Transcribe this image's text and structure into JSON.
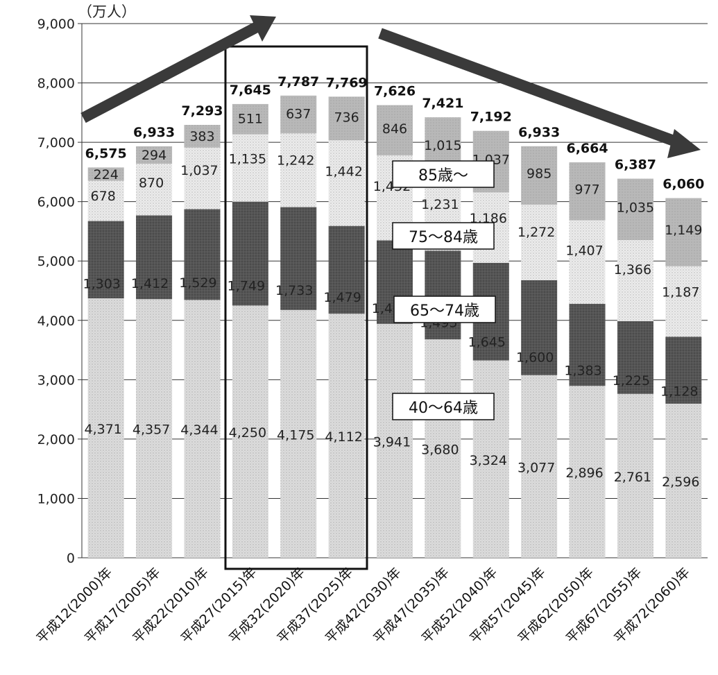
{
  "chart_data": {
    "type": "bar",
    "stacked": true,
    "y_unit_label": "（万人）",
    "ylim": [
      0,
      9000
    ],
    "yticks": [
      0,
      1000,
      2000,
      3000,
      4000,
      5000,
      6000,
      7000,
      8000,
      9000
    ],
    "ytick_labels": [
      "0",
      "1,000",
      "2,000",
      "3,000",
      "4,000",
      "5,000",
      "6,000",
      "7,000",
      "8,000",
      "9,000"
    ],
    "grid": "horizontal",
    "categories": [
      "平成12(2000)年",
      "平成17(2005)年",
      "平成22(2010)年",
      "平成27(2015)年",
      "平成32(2020)年",
      "平成37(2025)年",
      "平成42(2030)年",
      "平成47(2035)年",
      "平成52(2040)年",
      "平成57(2045)年",
      "平成62(2050)年",
      "平成67(2055)年",
      "平成72(2060)年"
    ],
    "series": [
      {
        "name": "40～64歳",
        "color": "#dcdcdc",
        "values": [
          4371,
          4357,
          4344,
          4250,
          4175,
          4112,
          3941,
          3680,
          3324,
          3077,
          2896,
          2761,
          2596
        ],
        "labels": [
          "4,371",
          "4,357",
          "4,344",
          "4,250",
          "4,175",
          "4,112",
          "3,941",
          "3,680",
          "3,324",
          "3,077",
          "2,896",
          "2,761",
          "2,596"
        ]
      },
      {
        "name": "65～74歳",
        "color": "#555555",
        "values": [
          1303,
          1412,
          1529,
          1749,
          1733,
          1479,
          1407,
          1495,
          1645,
          1600,
          1383,
          1225,
          1128
        ],
        "labels": [
          "1,303",
          "1,412",
          "1,529",
          "1,749",
          "1,733",
          "1,479",
          "1,407",
          "1,495",
          "1,645",
          "1,600",
          "1,383",
          "1,225",
          "1,128"
        ]
      },
      {
        "name": "75～84歳",
        "color": "#ececec",
        "values": [
          678,
          870,
          1037,
          1135,
          1242,
          1442,
          1432,
          1231,
          1186,
          1272,
          1407,
          1366,
          1187
        ],
        "labels": [
          "678",
          "870",
          "1,037",
          "1,135",
          "1,242",
          "1,442",
          "1,432",
          "1,231",
          "1,186",
          "1,272",
          "1,407",
          "1,366",
          "1,187"
        ]
      },
      {
        "name": "85歳～",
        "color": "#b8b8b8",
        "values": [
          224,
          294,
          383,
          511,
          637,
          736,
          846,
          1015,
          1037,
          985,
          977,
          1035,
          1149
        ],
        "labels": [
          "224",
          "294",
          "383",
          "511",
          "637",
          "736",
          "846",
          "1,015",
          "1,037",
          "985",
          "977",
          "1,035",
          "1,149"
        ]
      }
    ],
    "totals": [
      6575,
      6933,
      7293,
      7645,
      7787,
      7769,
      7626,
      7421,
      7192,
      6933,
      6664,
      6387,
      6060
    ],
    "total_labels": [
      "6,575",
      "6,933",
      "7,293",
      "7,645",
      "7,787",
      "7,769",
      "7,626",
      "7,421",
      "7,192",
      "6,933",
      "6,664",
      "6,387",
      "6,060"
    ],
    "highlight_box_categories": [
      "平成27(2015)年",
      "平成32(2020)年",
      "平成37(2025)年"
    ],
    "trend_arrows": [
      "up",
      "down"
    ]
  }
}
